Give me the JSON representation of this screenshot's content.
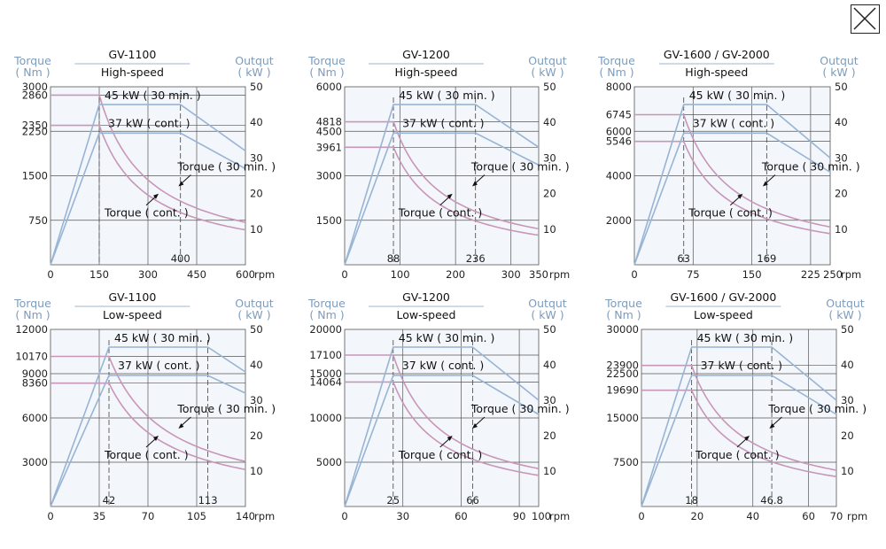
{
  "close_icon": "close-icon",
  "colors": {
    "torque": "#c896b8",
    "output": "#98b4d4",
    "label": "#7c9cbd",
    "plot_bg": "#f3f6fb",
    "grid": "#555555"
  },
  "labels": {
    "torque_title": "Torque",
    "torque_unit": "( Nm )",
    "output_title": "Outqut",
    "output_unit": "( kW )",
    "rpm_unit": "rpm",
    "line_30min": "45 kW ( 30 min. )",
    "line_cont": "37 kW ( cont. )",
    "torque_30min": "Torque ( 30 min. )",
    "torque_cont": "Torque ( cont. )"
  },
  "chart_data": [
    {
      "type": "line",
      "title": "GV-1100",
      "subtitle": "High-speed",
      "xlim": [
        0,
        600
      ],
      "xticks": [
        "0",
        "150",
        "300",
        "450",
        "600"
      ],
      "ylim": [
        0,
        3000
      ],
      "yticks": [
        "750",
        "1500",
        "2250",
        "2350",
        "2860",
        "3000"
      ],
      "y2lim": [
        0,
        50
      ],
      "y2ticks": [
        "10",
        "20",
        "30",
        "40",
        "50"
      ],
      "base_speed": 150,
      "base_label": "",
      "max_speed": 400,
      "max_label": "400",
      "torque_30min": 2860,
      "torque_cont": 2350,
      "series": [
        {
          "name": "45 kW ( 30 min. )",
          "power_kw": 45,
          "rated_speed": 150,
          "max_speed": 400,
          "end_power_kw": 32
        },
        {
          "name": "37 kW ( cont. )",
          "power_kw": 37,
          "rated_speed": 150,
          "max_speed": 400,
          "end_power_kw": 27
        }
      ]
    },
    {
      "type": "line",
      "title": "GV-1200",
      "subtitle": "High-speed",
      "xlim": [
        0,
        350
      ],
      "xticks": [
        "0",
        "100",
        "200",
        "300",
        "350"
      ],
      "ylim": [
        0,
        6000
      ],
      "yticks": [
        "1500",
        "3000",
        "3961",
        "4500",
        "4818",
        "6000"
      ],
      "y2lim": [
        0,
        50
      ],
      "y2ticks": [
        "10",
        "20",
        "30",
        "40",
        "50"
      ],
      "base_speed": 88,
      "base_label": "88",
      "max_speed": 236,
      "max_label": "236",
      "torque_30min": 4818,
      "torque_cont": 3961,
      "series": [
        {
          "name": "45 kW ( 30 min. )",
          "power_kw": 45,
          "rated_speed": 88,
          "max_speed": 236,
          "end_power_kw": 33
        },
        {
          "name": "37 kW ( cont. )",
          "power_kw": 37,
          "rated_speed": 88,
          "max_speed": 236,
          "end_power_kw": 28
        }
      ]
    },
    {
      "type": "line",
      "title": "GV-1600 / GV-2000",
      "subtitle": "High-speed",
      "xlim": [
        0,
        250
      ],
      "xticks": [
        "0",
        "75",
        "150",
        "225",
        "250"
      ],
      "ylim": [
        0,
        8000
      ],
      "yticks": [
        "2000",
        "4000",
        "5546",
        "6000",
        "6745",
        "8000"
      ],
      "y2lim": [
        0,
        50
      ],
      "y2ticks": [
        "10",
        "20",
        "30",
        "40",
        "50"
      ],
      "base_speed": 63,
      "base_label": "63",
      "max_speed": 169,
      "max_label": "169",
      "torque_30min": 6745,
      "torque_cont": 5546,
      "series": [
        {
          "name": "45 kW ( 30 min. )",
          "power_kw": 45,
          "rated_speed": 63,
          "max_speed": 169,
          "end_power_kw": 30
        },
        {
          "name": "37 kW ( cont. )",
          "power_kw": 37,
          "rated_speed": 63,
          "max_speed": 169,
          "end_power_kw": 26
        }
      ]
    },
    {
      "type": "line",
      "title": "GV-1100",
      "subtitle": "Low-speed",
      "xlim": [
        0,
        140
      ],
      "xticks": [
        "0",
        "35",
        "70",
        "105",
        "140"
      ],
      "ylim": [
        0,
        12000
      ],
      "yticks": [
        "3000",
        "6000",
        "8360",
        "9000",
        "10170",
        "12000"
      ],
      "y2lim": [
        0,
        50
      ],
      "y2ticks": [
        "10",
        "20",
        "30",
        "40",
        "50"
      ],
      "base_speed": 42,
      "base_label": "42",
      "max_speed": 113,
      "max_label": "113",
      "torque_30min": 10170,
      "torque_cont": 8360,
      "series": [
        {
          "name": "45 kW ( 30 min. )",
          "power_kw": 45,
          "rated_speed": 42,
          "max_speed": 113,
          "end_power_kw": 38
        },
        {
          "name": "37 kW ( cont. )",
          "power_kw": 37,
          "rated_speed": 42,
          "max_speed": 113,
          "end_power_kw": 32
        }
      ]
    },
    {
      "type": "line",
      "title": "GV-1200",
      "subtitle": "Low-speed",
      "xlim": [
        0,
        100
      ],
      "xticks": [
        "0",
        "30",
        "60",
        "90",
        "100"
      ],
      "ylim": [
        0,
        20000
      ],
      "yticks": [
        "5000",
        "10000",
        "14064",
        "15000",
        "17100",
        "20000"
      ],
      "y2lim": [
        0,
        50
      ],
      "y2ticks": [
        "10",
        "20",
        "30",
        "40",
        "50"
      ],
      "base_speed": 25,
      "base_label": "25",
      "max_speed": 66,
      "max_label": "66",
      "torque_30min": 17100,
      "torque_cont": 14064,
      "series": [
        {
          "name": "45 kW ( 30 min. )",
          "power_kw": 45,
          "rated_speed": 25,
          "max_speed": 66,
          "end_power_kw": 30
        },
        {
          "name": "37 kW ( cont. )",
          "power_kw": 37,
          "rated_speed": 25,
          "max_speed": 66,
          "end_power_kw": 26
        }
      ]
    },
    {
      "type": "line",
      "title": "GV-1600 / GV-2000",
      "subtitle": "Low-speed",
      "xlim": [
        0,
        70
      ],
      "xticks": [
        "0",
        "20",
        "40",
        "60",
        "70"
      ],
      "ylim": [
        0,
        30000
      ],
      "yticks": [
        "7500",
        "15000",
        "19690",
        "22500",
        "23900",
        "30000"
      ],
      "y2lim": [
        0,
        50
      ],
      "y2ticks": [
        "10",
        "20",
        "30",
        "40",
        "50"
      ],
      "base_speed": 18,
      "base_label": "18",
      "max_speed": 46.8,
      "max_label": "46.8",
      "torque_30min": 23900,
      "torque_cont": 19690,
      "series": [
        {
          "name": "45 kW ( 30 min. )",
          "power_kw": 45,
          "rated_speed": 18,
          "max_speed": 46.8,
          "end_power_kw": 30
        },
        {
          "name": "37 kW ( cont. )",
          "power_kw": 37,
          "rated_speed": 18,
          "max_speed": 46.8,
          "end_power_kw": 26
        }
      ]
    }
  ]
}
